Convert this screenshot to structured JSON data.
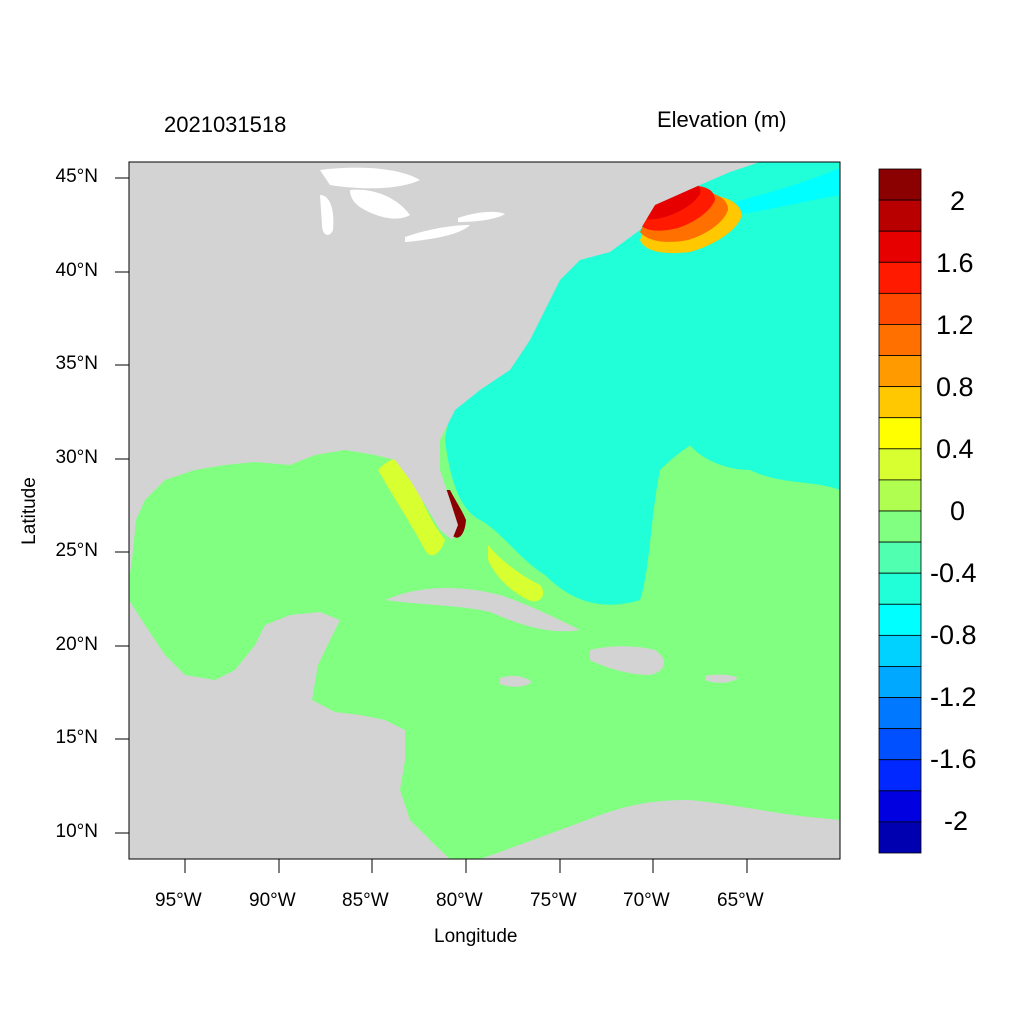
{
  "header": {
    "timestamp": "2021031518",
    "variable": "Elevation (m)"
  },
  "axes": {
    "xlabel": "Longitude",
    "ylabel": "Latitude",
    "x_ticks": [
      "95°W",
      "90°W",
      "85°W",
      "80°W",
      "75°W",
      "70°W",
      "65°W"
    ],
    "y_ticks": [
      "45°N",
      "40°N",
      "35°N",
      "30°N",
      "25°N",
      "20°N",
      "15°N",
      "10°N"
    ],
    "xlim": [
      -98,
      -60
    ],
    "ylim": [
      8.5,
      46
    ]
  },
  "colorbar": {
    "labels": [
      "2",
      "1.6",
      "1.2",
      "0.8",
      "0.4",
      "0",
      "-0.4",
      "-0.8",
      "-1.2",
      "-1.6",
      "-2"
    ],
    "colors": [
      "#8b0000",
      "#b80000",
      "#e60000",
      "#ff1a00",
      "#ff4800",
      "#ff7000",
      "#ff9a00",
      "#ffc800",
      "#ffff00",
      "#d8ff30",
      "#b0ff50",
      "#80ff80",
      "#50ffb0",
      "#20ffd8",
      "#00ffff",
      "#00d2ff",
      "#00a8ff",
      "#0078ff",
      "#0050ff",
      "#0028ff",
      "#0000e0",
      "#0000b0"
    ]
  },
  "legend_palette": {
    "land": "#d3d3d3",
    "lakes": "#ffffff"
  }
}
